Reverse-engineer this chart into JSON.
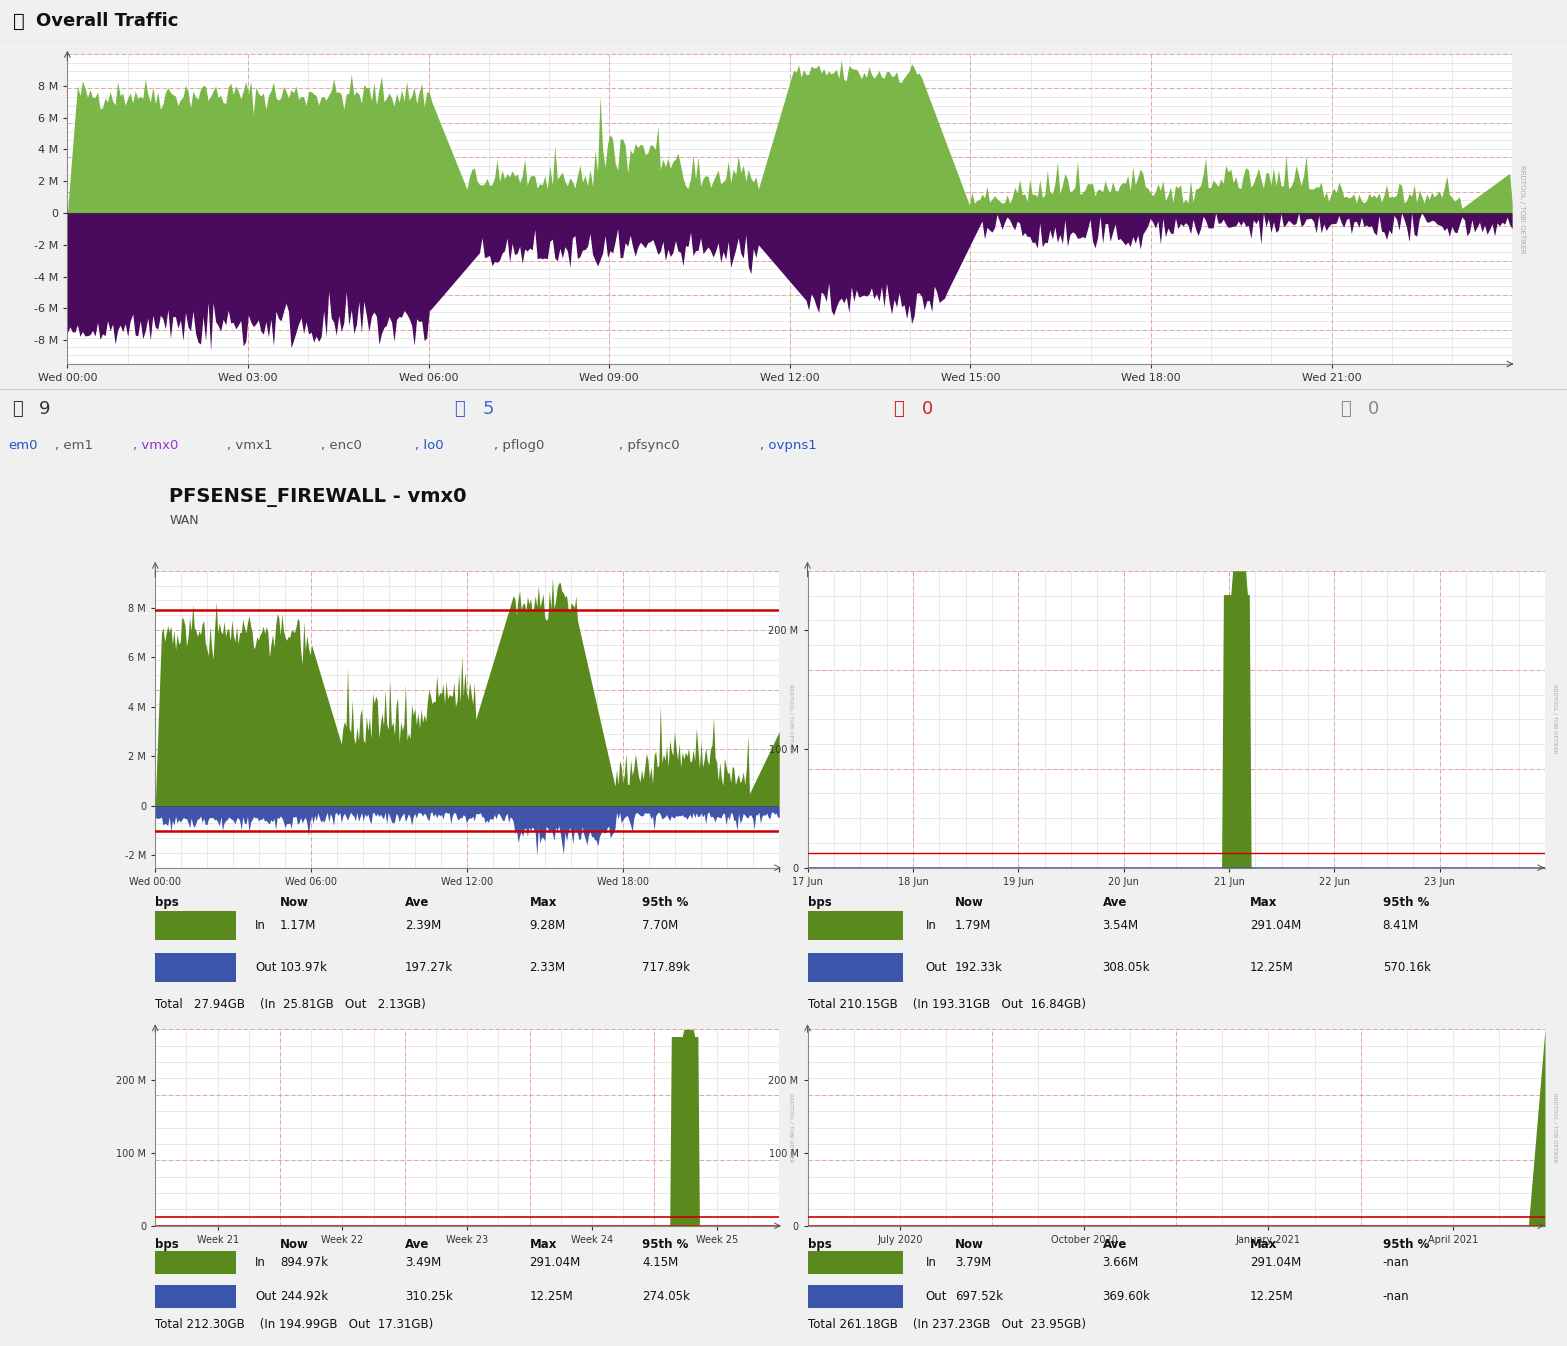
{
  "title": "Overall Traffic",
  "bg_color": "#f0f0f0",
  "chart_bg": "#ffffff",
  "header_bg": "#e8e8e8",
  "green_color": "#7ab648",
  "purple_color": "#4a0a5e",
  "blue_color": "#4169a0",
  "dark_green": "#5a8a1e",
  "red_line_color": "#cc0000",
  "x_labels_top": [
    "Wed 00:00",
    "Wed 03:00",
    "Wed 06:00",
    "Wed 09:00",
    "Wed 12:00",
    "Wed 15:00",
    "Wed 18:00",
    "Wed 21:00"
  ],
  "popup_title": "PFSENSE_FIREWALL - vmx0",
  "popup_subtitle": "WAN",
  "popup_x1": [
    "Wed 00:00",
    "Wed 06:00",
    "Wed 12:00",
    "Wed 18:00"
  ],
  "popup_x2": [
    "17 Jun",
    "18 Jun",
    "19 Jun",
    "20 Jun",
    "21 Jun",
    "22 Jun",
    "23 Jun"
  ],
  "popup_x3": [
    "Week 21",
    "Week 22",
    "Week 23",
    "Week 24",
    "Week 25"
  ],
  "popup_x4": [
    "July 2020",
    "October 2020",
    "January 2021",
    "April 2021"
  ],
  "table1_headers": [
    "bps",
    "Now",
    "Ave",
    "Max",
    "95th %"
  ],
  "table1_in": [
    "In",
    "1.17M",
    "2.39M",
    "9.28M",
    "7.70M"
  ],
  "table1_out": [
    "Out",
    "103.97k",
    "197.27k",
    "2.33M",
    "717.89k"
  ],
  "table1_total": "Total   27.94GB    (In  25.81GB   Out   2.13GB)",
  "table2_in": [
    "In",
    "1.79M",
    "3.54M",
    "291.04M",
    "8.41M"
  ],
  "table2_out": [
    "Out",
    "192.33k",
    "308.05k",
    "12.25M",
    "570.16k"
  ],
  "table2_total": "Total 210.15GB    (In 193.31GB   Out  16.84GB)",
  "table3_in": [
    "In",
    "894.97k",
    "3.49M",
    "291.04M",
    "4.15M"
  ],
  "table3_out": [
    "Out",
    "244.92k",
    "310.25k",
    "12.25M",
    "274.05k"
  ],
  "table3_total": "Total 212.30GB    (In 194.99GB   Out  17.31GB)",
  "table4_in": [
    "In",
    "3.79M",
    "3.66M",
    "291.04M",
    "-nan"
  ],
  "table4_out": [
    "Out",
    "697.52k",
    "369.60k",
    "12.25M",
    "-nan"
  ],
  "table4_total": "Total 261.18GB    (In 237.23GB   Out  23.95GB)",
  "ifaces": [
    [
      "em0",
      "#2255cc"
    ],
    [
      ", em1",
      "#555555"
    ],
    [
      ", vmx0",
      "#9933cc"
    ],
    [
      ", vmx1",
      "#555555"
    ],
    [
      ", enc0",
      "#555555"
    ],
    [
      ", lo0",
      "#2255cc"
    ],
    [
      ", pflog0",
      "#555555"
    ],
    [
      ", pfsync0",
      "#555555"
    ],
    [
      ", ovpns1",
      "#2255cc"
    ]
  ]
}
